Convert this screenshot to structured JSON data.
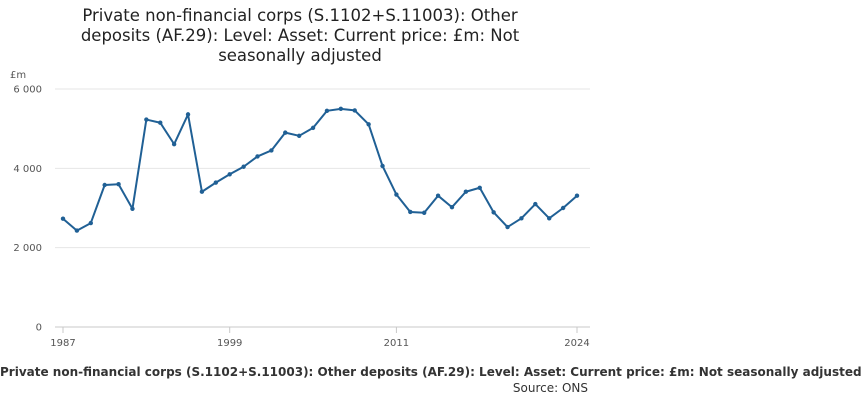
{
  "chart_data": {
    "type": "line",
    "title_lines": [
      "Private non-financial corps (S.1102+S.11003): Other",
      "deposits (AF.29): Level: Asset: Current price: £m: Not",
      "seasonally adjusted"
    ],
    "ylabel": "£m",
    "xlabel": "",
    "ylim": [
      0,
      6000
    ],
    "yticks": [
      0,
      2000,
      4000,
      6000
    ],
    "ytick_labels": [
      "0",
      "2 000",
      "4 000",
      "6 000"
    ],
    "xlim": [
      1987,
      2024
    ],
    "xticks": [
      1987,
      1999,
      2011,
      2024
    ],
    "xtick_labels": [
      "1987",
      "1999",
      "2011",
      "2024"
    ],
    "grid": true,
    "series": [
      {
        "name": "Private non-financial corps (S.1102+S.11003): Other deposits (AF.29): Level: Asset: Current price: £m: Not seasonally adjusted",
        "color": "#206095",
        "x": [
          1987,
          1988,
          1989,
          1990,
          1991,
          1992,
          1993,
          1994,
          1995,
          1996,
          1997,
          1998,
          1999,
          2000,
          2001,
          2002,
          2003,
          2004,
          2005,
          2006,
          2007,
          2008,
          2009,
          2010,
          2011,
          2012,
          2013,
          2014,
          2015,
          2016,
          2017,
          2018,
          2019,
          2020,
          2021,
          2022,
          2023,
          2024
        ],
        "values": [
          2730,
          2430,
          2620,
          3580,
          3600,
          2980,
          5230,
          5150,
          4610,
          5360,
          3410,
          3640,
          3850,
          4040,
          4300,
          4450,
          4900,
          4820,
          5020,
          5450,
          5500,
          5460,
          5110,
          4060,
          3340,
          2900,
          2880,
          3310,
          3020,
          3410,
          3510,
          2890,
          2520,
          2740,
          3100,
          2740,
          3000,
          3310
        ]
      }
    ]
  },
  "footer": {
    "caption": "Private non-financial corps (S.1102+S.11003): Other deposits (AF.29): Level: Asset: Current price: £m: Not seasonally adjusted",
    "source": "Source: ONS"
  }
}
